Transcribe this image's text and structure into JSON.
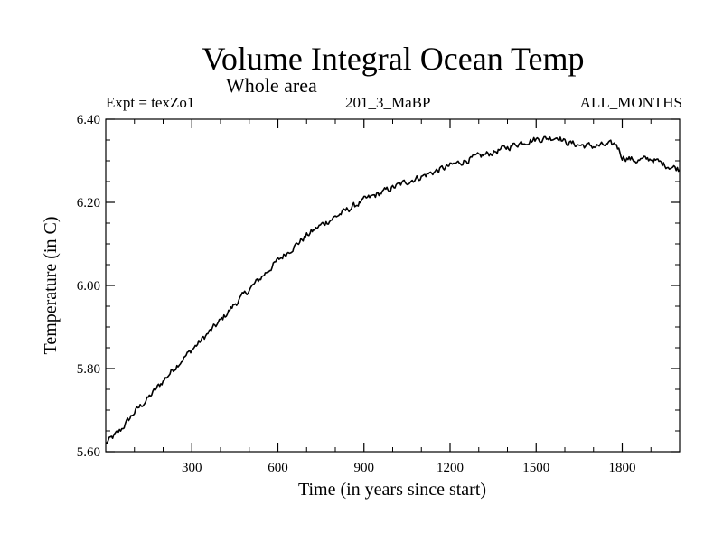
{
  "chart_data": {
    "type": "line",
    "title": "Volume Integral Ocean Temp",
    "subtitle": "Whole area",
    "annotations": {
      "left": "Expt = texZo1",
      "center": "201_3_MaBP",
      "right": "ALL_MONTHS"
    },
    "xlabel": "Time (in years since start)",
    "ylabel": "Temperature (in C)",
    "xlim": [
      0,
      2000
    ],
    "ylim": [
      5.6,
      6.4
    ],
    "xticks": [
      300,
      600,
      900,
      1200,
      1500,
      1800
    ],
    "xtick_labels": [
      "300",
      "600",
      "900",
      "1200",
      "1500",
      "1800"
    ],
    "yticks": [
      5.6,
      5.8,
      6.0,
      6.2,
      6.4
    ],
    "ytick_labels": [
      "5.60",
      "5.80",
      "6.00",
      "6.20",
      "6.40"
    ],
    "grid": false,
    "series": [
      {
        "name": "Volume Integral Ocean Temp",
        "color": "#000000",
        "x": [
          0,
          50,
          100,
          150,
          200,
          250,
          300,
          350,
          400,
          450,
          500,
          550,
          600,
          650,
          700,
          750,
          800,
          850,
          900,
          950,
          1000,
          1050,
          1100,
          1150,
          1200,
          1250,
          1300,
          1350,
          1400,
          1450,
          1500,
          1550,
          1580,
          1600,
          1650,
          1700,
          1750,
          1780,
          1800,
          1850,
          1900,
          1950,
          2000
        ],
        "y": [
          5.62,
          5.65,
          5.695,
          5.73,
          5.77,
          5.81,
          5.845,
          5.88,
          5.915,
          5.955,
          5.99,
          6.025,
          6.06,
          6.09,
          6.12,
          6.145,
          6.165,
          6.185,
          6.205,
          6.22,
          6.235,
          6.25,
          6.262,
          6.275,
          6.288,
          6.3,
          6.31,
          6.32,
          6.332,
          6.345,
          6.352,
          6.355,
          6.358,
          6.345,
          6.338,
          6.335,
          6.338,
          6.34,
          6.31,
          6.3,
          6.305,
          6.29,
          6.28
        ]
      }
    ]
  }
}
